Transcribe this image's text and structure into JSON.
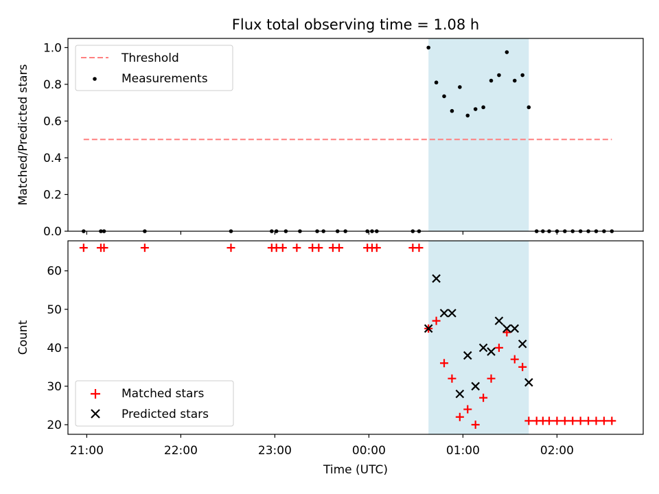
{
  "figure": {
    "title": "Flux total observing time = 1.08 h",
    "xlabel": "Time (UTC)",
    "x_tick_labels": [
      "21:00",
      "22:00",
      "23:00",
      "00:00",
      "01:00",
      "02:00"
    ],
    "highlight_color": "#add8e6"
  },
  "chart_data": [
    {
      "type": "scatter",
      "ylabel": "Matched/Predicted stars",
      "ylim": [
        0,
        1.05
      ],
      "yticks": [
        "0.0",
        "0.2",
        "0.4",
        "0.6",
        "0.8",
        "1.0"
      ],
      "xlim": [
        "20:48",
        "02:55"
      ],
      "highlight_span": [
        "00:38",
        "01:42"
      ],
      "legend_placement": "upper left",
      "series": [
        {
          "name": "Threshold",
          "style": "dashed-line",
          "color": "#ff7f7f",
          "x": [
            "20:58",
            "02:35"
          ],
          "y": [
            0.5,
            0.5
          ]
        },
        {
          "name": "Measurements",
          "style": "dot",
          "color": "#000000",
          "x": [
            "20:58",
            "21:09",
            "21:11",
            "21:37",
            "22:32",
            "22:58",
            "23:01",
            "23:07",
            "23:16",
            "23:27",
            "23:31",
            "23:40",
            "23:45",
            "23:59",
            "00:02",
            "00:05",
            "00:28",
            "00:32",
            "00:38",
            "00:43",
            "00:48",
            "00:53",
            "00:58",
            "01:03",
            "01:08",
            "01:13",
            "01:18",
            "01:23",
            "01:28",
            "01:33",
            "01:38",
            "01:42",
            "01:47",
            "01:51",
            "01:55",
            "02:00",
            "02:05",
            "02:10",
            "02:15",
            "02:20",
            "02:25",
            "02:30",
            "02:35"
          ],
          "y": [
            0,
            0,
            0,
            0,
            0,
            0,
            0,
            0,
            0,
            0,
            0,
            0,
            0,
            0,
            0,
            0,
            0,
            0,
            1.0,
            0.81,
            0.735,
            0.655,
            0.785,
            0.63,
            0.665,
            0.675,
            0.82,
            0.85,
            0.975,
            0.82,
            0.85,
            0.675,
            0,
            0,
            0,
            0,
            0,
            0,
            0,
            0,
            0,
            0,
            0
          ]
        }
      ]
    },
    {
      "type": "scatter",
      "ylabel": "Count",
      "ylim": [
        17.5,
        67.8
      ],
      "yticks": [
        "20",
        "30",
        "40",
        "50",
        "60"
      ],
      "xlim": [
        "20:48",
        "02:55"
      ],
      "highlight_span": [
        "00:38",
        "01:42"
      ],
      "legend_placement": "lower left",
      "series": [
        {
          "name": "Matched stars",
          "marker": "plus",
          "color": "#ff0000",
          "x": [
            "20:58",
            "21:09",
            "21:11",
            "21:37",
            "22:32",
            "22:58",
            "23:01",
            "23:05",
            "23:14",
            "23:24",
            "23:28",
            "23:37",
            "23:41",
            "23:59",
            "00:02",
            "00:05",
            "00:28",
            "00:32",
            "00:38",
            "00:43",
            "00:48",
            "00:53",
            "00:58",
            "01:03",
            "01:08",
            "01:13",
            "01:18",
            "01:23",
            "01:28",
            "01:33",
            "01:38",
            "01:42",
            "01:47",
            "01:51",
            "01:55",
            "02:00",
            "02:05",
            "02:10",
            "02:15",
            "02:20",
            "02:25",
            "02:30",
            "02:35"
          ],
          "y": [
            66,
            66,
            66,
            66,
            66,
            66,
            66,
            66,
            66,
            66,
            66,
            66,
            66,
            66,
            66,
            66,
            66,
            66,
            45,
            47,
            36,
            32,
            22,
            24,
            20,
            27,
            32,
            40,
            44,
            37,
            35,
            21,
            21,
            21,
            21,
            21,
            21,
            21,
            21,
            21,
            21,
            21,
            21
          ]
        },
        {
          "name": "Predicted stars",
          "marker": "x",
          "color": "#000000",
          "x": [
            "00:38",
            "00:43",
            "00:48",
            "00:53",
            "00:58",
            "01:03",
            "01:08",
            "01:13",
            "01:18",
            "01:23",
            "01:28",
            "01:33",
            "01:38",
            "01:42"
          ],
          "y": [
            45,
            58,
            49,
            49,
            28,
            38,
            30,
            40,
            39,
            47,
            45,
            45,
            41,
            31
          ]
        }
      ]
    }
  ]
}
